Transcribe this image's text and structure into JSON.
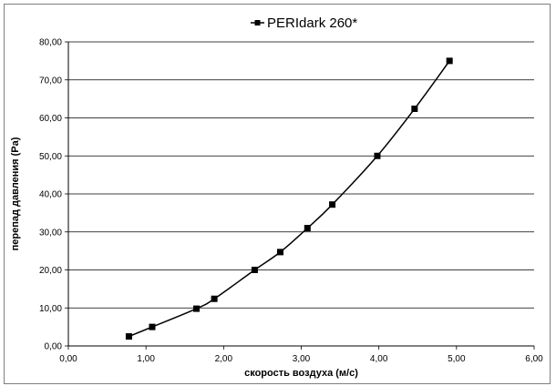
{
  "chart_data": {
    "type": "line",
    "title": "",
    "xlabel": "скорость воздуха (м/с)",
    "ylabel": "перепад давления (Pa)",
    "xlim": [
      0,
      6
    ],
    "ylim": [
      0,
      80
    ],
    "x_ticks": [
      "0,00",
      "1,00",
      "2,00",
      "3,00",
      "4,00",
      "5,00",
      "6,00"
    ],
    "y_ticks": [
      "0,00",
      "10,00",
      "20,00",
      "30,00",
      "40,00",
      "50,00",
      "60,00",
      "70,00",
      "80,00"
    ],
    "grid": "horizontal",
    "legend_position": "top",
    "series": [
      {
        "name": "PERIdark 260*",
        "color": "#000000",
        "marker": "square",
        "points": [
          [
            0.78,
            2.5
          ],
          [
            1.08,
            5.0
          ],
          [
            1.65,
            9.8
          ],
          [
            1.88,
            12.4
          ],
          [
            2.4,
            20.0
          ],
          [
            2.73,
            24.7
          ],
          [
            3.08,
            31.0
          ],
          [
            3.4,
            37.2
          ],
          [
            3.98,
            50.0
          ],
          [
            4.46,
            62.4
          ],
          [
            4.91,
            75.0
          ]
        ]
      }
    ]
  }
}
